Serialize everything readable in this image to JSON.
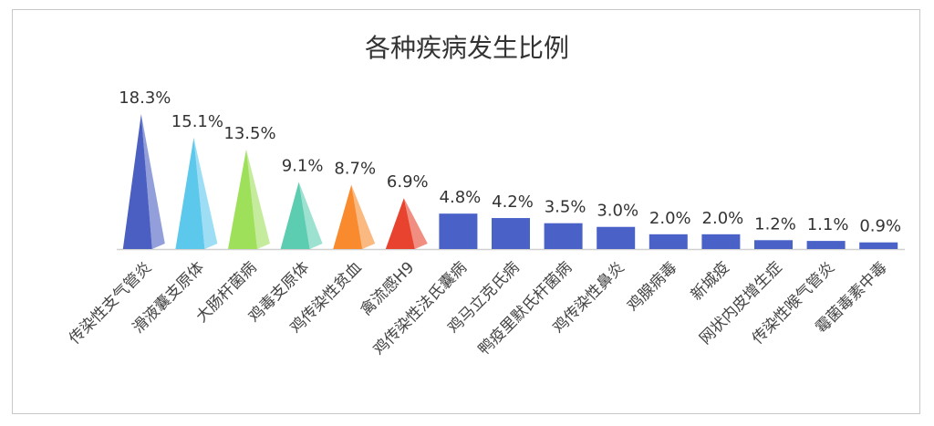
{
  "chart_data": {
    "type": "bar",
    "title": "各种疾病发生比例",
    "xlabel": "",
    "ylabel": "",
    "ylim": [
      0,
      18.3
    ],
    "grid": false,
    "legend": "none",
    "categories": [
      "传染性支气管炎",
      "滑液囊支原体",
      "大肠杆菌病",
      "鸡毒支原体",
      "鸡传染性贫血",
      "禽流感H9",
      "鸡传染性法氏囊病",
      "鸡马立克氏病",
      "鸭疫里默氏杆菌病",
      "鸡传染性鼻炎",
      "鸡腺病毒",
      "新城疫",
      "网状内皮增生症",
      "传染性喉气管炎",
      "霉菌毒素中毒"
    ],
    "values": [
      18.3,
      15.1,
      13.5,
      9.1,
      8.7,
      6.9,
      4.8,
      4.2,
      3.5,
      3.0,
      2.0,
      2.0,
      1.2,
      1.1,
      0.9
    ],
    "data_labels": [
      "18.3%",
      "15.1%",
      "13.5%",
      "9.1%",
      "8.7%",
      "6.9%",
      "4.8%",
      "4.2%",
      "3.5%",
      "3.0%",
      "2.0%",
      "2.0%",
      "1.2%",
      "1.1%",
      "0.9%"
    ],
    "mark_shapes": [
      "pyramid",
      "pyramid",
      "pyramid",
      "pyramid",
      "pyramid",
      "pyramid",
      "bar",
      "bar",
      "bar",
      "bar",
      "bar",
      "bar",
      "bar",
      "bar",
      "bar"
    ],
    "colors": [
      "#4a5fc1",
      "#5cc8ec",
      "#9ee05a",
      "#5ccdb0",
      "#f98a2e",
      "#e8432e",
      "#4a62c8",
      "#4a62c8",
      "#4a62c8",
      "#4a62c8",
      "#4a62c8",
      "#4a62c8",
      "#4a62c8",
      "#4a62c8",
      "#4a62c8"
    ]
  }
}
